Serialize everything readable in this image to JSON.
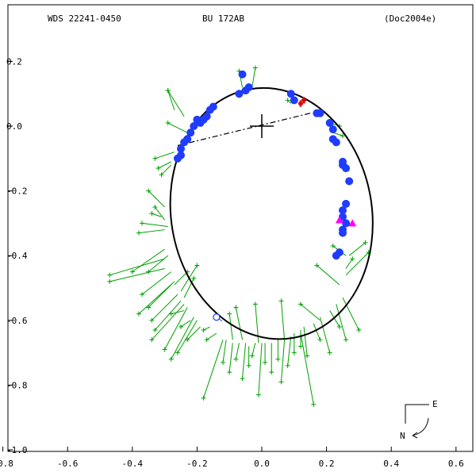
{
  "header": {
    "left": "WDS 22241-0450",
    "center": "BU  172AB",
    "right": "(Doc2004e)"
  },
  "compass": {
    "east": "E",
    "north": "N"
  },
  "colors": {
    "frame": "#000000",
    "orbit": "#000000",
    "measures_blue": "#1f3cff",
    "measures_green": "#00a000",
    "highlight_red": "#e00000",
    "highlight_magenta": "#ff00ff"
  },
  "chart_data": {
    "type": "scatter",
    "title": "WDS 22241-0450   BU  172AB   (Doc2004e)",
    "xlabel": "",
    "ylabel": "",
    "xlim": [
      -0.8,
      0.66
    ],
    "ylim": [
      -1.0,
      0.22
    ],
    "x_ticks": [
      "-0.8",
      "-0.6",
      "-0.4",
      "-0.2",
      "0.0",
      "0.2",
      "0.4",
      "0.6"
    ],
    "y_ticks": [
      "0.2",
      "0.0",
      "-0.2",
      "-0.4",
      "-0.6",
      "-0.8",
      "-1.0"
    ],
    "x_tick_values": [
      -0.8,
      -0.6,
      -0.4,
      -0.2,
      0.0,
      0.2,
      0.4,
      0.6
    ],
    "y_tick_values": [
      0.2,
      0.0,
      -0.2,
      -0.4,
      -0.6,
      -0.8,
      -1.0
    ],
    "grid": false,
    "orbit": {
      "shape": "ellipse",
      "center": [
        0.03,
        -0.27
      ],
      "semi_axes": [
        0.31,
        0.39
      ],
      "rotation_deg": -10
    },
    "line_of_nodes": [
      [
        -0.26,
        -0.06
      ],
      [
        0.15,
        0.04
      ]
    ],
    "primary_star": [
      0.0,
      0.0
    ],
    "series": [
      {
        "marker": "filled circle",
        "color": "blue",
        "points": [
          [
            -0.06,
            0.16
          ],
          [
            -0.07,
            0.1
          ],
          [
            -0.05,
            0.11
          ],
          [
            -0.04,
            0.12
          ],
          [
            0.09,
            0.1
          ],
          [
            0.1,
            0.08
          ],
          [
            -0.15,
            0.06
          ],
          [
            -0.16,
            0.05
          ],
          [
            -0.17,
            0.03
          ],
          [
            -0.18,
            0.02
          ],
          [
            -0.19,
            0.01
          ],
          [
            -0.2,
            0.02
          ],
          [
            -0.21,
            0.0
          ],
          [
            -0.22,
            -0.02
          ],
          [
            -0.23,
            -0.04
          ],
          [
            -0.24,
            -0.05
          ],
          [
            -0.25,
            -0.07
          ],
          [
            -0.25,
            -0.09
          ],
          [
            -0.26,
            -0.1
          ],
          [
            0.17,
            0.04
          ],
          [
            0.18,
            0.04
          ],
          [
            0.21,
            0.01
          ],
          [
            0.22,
            -0.01
          ],
          [
            0.22,
            -0.04
          ],
          [
            0.23,
            -0.05
          ],
          [
            0.25,
            -0.11
          ],
          [
            0.25,
            -0.12
          ],
          [
            0.26,
            -0.13
          ],
          [
            0.27,
            -0.17
          ],
          [
            0.26,
            -0.24
          ],
          [
            0.25,
            -0.26
          ],
          [
            0.25,
            -0.28
          ],
          [
            0.26,
            -0.3
          ],
          [
            0.25,
            -0.32
          ],
          [
            0.25,
            -0.33
          ],
          [
            0.24,
            -0.39
          ],
          [
            0.23,
            -0.4
          ]
        ]
      },
      {
        "marker": "open circle",
        "color": "blue",
        "points": [
          [
            -0.14,
            -0.59
          ]
        ]
      },
      {
        "marker": "filled triangle",
        "color": "magenta",
        "points": [
          [
            0.24,
            -0.29
          ],
          [
            0.28,
            -0.3
          ]
        ]
      },
      {
        "marker": "cross",
        "color": "red",
        "points": [
          [
            0.13,
            0.08
          ],
          [
            0.12,
            0.07
          ]
        ]
      },
      {
        "marker": "plus with residual line",
        "color": "green",
        "points": [
          [
            [
              -0.07,
              0.17
            ],
            [
              -0.06,
              0.12
            ]
          ],
          [
            [
              -0.02,
              0.18
            ],
            [
              -0.03,
              0.12
            ]
          ],
          [
            [
              0.08,
              0.08
            ],
            [
              0.09,
              0.07
            ]
          ],
          [
            [
              -0.29,
              0.11
            ],
            [
              -0.27,
              0.05
            ]
          ],
          [
            [
              -0.29,
              0.11
            ],
            [
              -0.24,
              0.03
            ]
          ],
          [
            [
              -0.29,
              0.01
            ],
            [
              -0.23,
              -0.02
            ]
          ],
          [
            [
              -0.32,
              -0.13
            ],
            [
              -0.28,
              -0.11
            ]
          ],
          [
            [
              -0.33,
              -0.1
            ],
            [
              -0.27,
              -0.08
            ]
          ],
          [
            [
              -0.31,
              -0.15
            ],
            [
              -0.28,
              -0.12
            ]
          ],
          [
            [
              0.24,
              0.0
            ],
            [
              0.21,
              0.01
            ]
          ],
          [
            [
              0.25,
              -0.03
            ],
            [
              0.22,
              -0.02
            ]
          ],
          [
            [
              -0.35,
              -0.2
            ],
            [
              -0.3,
              -0.25
            ]
          ],
          [
            [
              -0.34,
              -0.27
            ],
            [
              -0.31,
              -0.28
            ]
          ],
          [
            [
              -0.33,
              -0.25
            ],
            [
              -0.3,
              -0.29
            ]
          ],
          [
            [
              -0.37,
              -0.3
            ],
            [
              -0.29,
              -0.31
            ]
          ],
          [
            [
              -0.38,
              -0.33
            ],
            [
              -0.3,
              -0.32
            ]
          ],
          [
            [
              -0.47,
              -0.46
            ],
            [
              -0.3,
              -0.41
            ]
          ],
          [
            [
              -0.47,
              -0.48
            ],
            [
              -0.3,
              -0.44
            ]
          ],
          [
            [
              -0.4,
              -0.45
            ],
            [
              -0.3,
              -0.38
            ]
          ],
          [
            [
              -0.35,
              -0.45
            ],
            [
              -0.29,
              -0.4
            ]
          ],
          [
            [
              -0.37,
              -0.52
            ],
            [
              -0.28,
              -0.45
            ]
          ],
          [
            [
              -0.38,
              -0.58
            ],
            [
              -0.27,
              -0.48
            ]
          ],
          [
            [
              -0.35,
              -0.56
            ],
            [
              -0.28,
              -0.49
            ]
          ],
          [
            [
              -0.34,
              -0.6
            ],
            [
              -0.26,
              -0.52
            ]
          ],
          [
            [
              -0.33,
              -0.63
            ],
            [
              -0.25,
              -0.54
            ]
          ],
          [
            [
              -0.34,
              -0.66
            ],
            [
              -0.24,
              -0.55
            ]
          ],
          [
            [
              -0.3,
              -0.69
            ],
            [
              -0.23,
              -0.56
            ]
          ],
          [
            [
              -0.28,
              -0.72
            ],
            [
              -0.21,
              -0.59
            ]
          ],
          [
            [
              -0.26,
              -0.7
            ],
            [
              -0.2,
              -0.6
            ]
          ],
          [
            [
              -0.28,
              -0.58
            ],
            [
              -0.24,
              -0.57
            ]
          ],
          [
            [
              -0.25,
              -0.62
            ],
            [
              -0.22,
              -0.6
            ]
          ],
          [
            [
              -0.23,
              -0.66
            ],
            [
              -0.19,
              -0.62
            ]
          ],
          [
            [
              -0.18,
              -0.63
            ],
            [
              -0.16,
              -0.62
            ]
          ],
          [
            [
              -0.17,
              -0.66
            ],
            [
              -0.14,
              -0.64
            ]
          ],
          [
            [
              -0.18,
              -0.84
            ],
            [
              -0.12,
              -0.66
            ]
          ],
          [
            [
              -0.12,
              -0.73
            ],
            [
              -0.11,
              -0.66
            ]
          ],
          [
            [
              -0.1,
              -0.76
            ],
            [
              -0.09,
              -0.67
            ]
          ],
          [
            [
              -0.08,
              -0.72
            ],
            [
              -0.07,
              -0.67
            ]
          ],
          [
            [
              -0.06,
              -0.78
            ],
            [
              -0.05,
              -0.67
            ]
          ],
          [
            [
              -0.04,
              -0.74
            ],
            [
              -0.04,
              -0.68
            ]
          ],
          [
            [
              -0.03,
              -0.71
            ],
            [
              -0.02,
              -0.67
            ]
          ],
          [
            [
              -0.01,
              -0.83
            ],
            [
              0.0,
              -0.67
            ]
          ],
          [
            [
              0.01,
              -0.73
            ],
            [
              0.01,
              -0.67
            ]
          ],
          [
            [
              0.03,
              -0.76
            ],
            [
              0.03,
              -0.67
            ]
          ],
          [
            [
              0.05,
              -0.72
            ],
            [
              0.05,
              -0.66
            ]
          ],
          [
            [
              0.06,
              -0.79
            ],
            [
              0.07,
              -0.66
            ]
          ],
          [
            [
              0.08,
              -0.74
            ],
            [
              0.09,
              -0.65
            ]
          ],
          [
            [
              0.1,
              -0.7
            ],
            [
              0.1,
              -0.64
            ]
          ],
          [
            [
              0.12,
              -0.68
            ],
            [
              0.12,
              -0.63
            ]
          ],
          [
            [
              0.14,
              -0.71
            ],
            [
              0.13,
              -0.62
            ]
          ],
          [
            [
              0.16,
              -0.86
            ],
            [
              0.12,
              -0.64
            ]
          ],
          [
            [
              0.18,
              -0.66
            ],
            [
              0.16,
              -0.61
            ]
          ],
          [
            [
              0.21,
              -0.7
            ],
            [
              0.18,
              -0.59
            ]
          ],
          [
            [
              0.24,
              -0.62
            ],
            [
              0.21,
              -0.57
            ]
          ],
          [
            [
              0.26,
              -0.66
            ],
            [
              0.23,
              -0.55
            ]
          ],
          [
            [
              0.3,
              -0.63
            ],
            [
              0.25,
              -0.53
            ]
          ],
          [
            [
              0.33,
              -0.39
            ],
            [
              0.26,
              -0.46
            ]
          ],
          [
            [
              0.28,
              -0.41
            ],
            [
              0.26,
              -0.44
            ]
          ],
          [
            [
              0.17,
              -0.43
            ],
            [
              0.24,
              -0.49
            ]
          ],
          [
            [
              0.12,
              -0.55
            ],
            [
              0.18,
              -0.6
            ]
          ],
          [
            [
              0.06,
              -0.54
            ],
            [
              0.07,
              -0.66
            ]
          ],
          [
            [
              -0.02,
              -0.55
            ],
            [
              -0.01,
              -0.67
            ]
          ],
          [
            [
              -0.08,
              -0.56
            ],
            [
              -0.06,
              -0.66
            ]
          ],
          [
            [
              -0.1,
              -0.58
            ],
            [
              -0.09,
              -0.66
            ]
          ],
          [
            [
              -0.21,
              -0.47
            ],
            [
              -0.24,
              -0.53
            ]
          ],
          [
            [
              -0.2,
              -0.43
            ],
            [
              -0.25,
              -0.51
            ]
          ],
          [
            [
              -0.23,
              -0.45
            ],
            [
              -0.27,
              -0.49
            ]
          ],
          [
            [
              0.32,
              -0.36
            ],
            [
              0.27,
              -0.4
            ]
          ],
          [
            [
              0.22,
              -0.37
            ],
            [
              0.26,
              -0.4
            ]
          ]
        ]
      }
    ]
  }
}
